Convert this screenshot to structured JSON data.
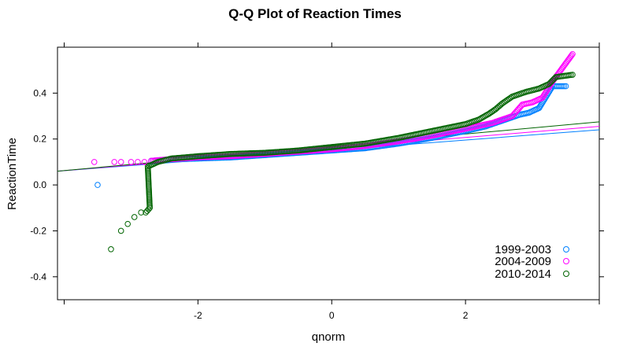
{
  "chart_data": {
    "type": "scatter",
    "title": "Q-Q Plot of Reaction Times",
    "xlabel": "qnorm",
    "ylabel": "ReactionTime",
    "xlim": [
      -4.1,
      4.0
    ],
    "ylim": [
      -0.5,
      0.6
    ],
    "x_ticks": [
      -2,
      0,
      2
    ],
    "y_ticks": [
      -0.4,
      -0.2,
      0.0,
      0.2,
      0.4
    ],
    "x_tick_labels": [
      "-2",
      "0",
      "2"
    ],
    "y_tick_labels": [
      "-0.4",
      "-0.2",
      "0.0",
      "0.2",
      "0.4"
    ],
    "legend_position": "bottom-right",
    "series": [
      {
        "name": "1999-2003",
        "color": "#0080ff",
        "qq_line": [
          [
            -4.1,
            0.06
          ],
          [
            4.0,
            0.24
          ]
        ],
        "points": [
          [
            -3.5,
            0.0
          ],
          [
            -2.7,
            0.105
          ],
          [
            -2.5,
            0.11
          ],
          [
            -2.0,
            0.115
          ],
          [
            -1.5,
            0.12
          ],
          [
            -1.0,
            0.13
          ],
          [
            -0.5,
            0.14
          ],
          [
            0.0,
            0.15
          ],
          [
            0.5,
            0.16
          ],
          [
            1.0,
            0.18
          ],
          [
            1.5,
            0.205
          ],
          [
            2.0,
            0.235
          ],
          [
            2.3,
            0.255
          ],
          [
            2.55,
            0.28
          ],
          [
            2.8,
            0.305
          ],
          [
            2.95,
            0.315
          ],
          [
            3.1,
            0.335
          ],
          [
            3.3,
            0.43
          ],
          [
            3.5,
            0.43
          ]
        ]
      },
      {
        "name": "2004-2009",
        "color": "#ff00ff",
        "qq_line": [
          [
            -4.1,
            0.06
          ],
          [
            4.0,
            0.255
          ]
        ],
        "points": [
          [
            -3.55,
            0.1
          ],
          [
            -3.25,
            0.1
          ],
          [
            -3.15,
            0.1
          ],
          [
            -3.0,
            0.1
          ],
          [
            -2.9,
            0.1
          ],
          [
            -2.8,
            0.1
          ],
          [
            -2.7,
            0.105
          ],
          [
            -2.5,
            0.11
          ],
          [
            -2.0,
            0.12
          ],
          [
            -1.5,
            0.125
          ],
          [
            -1.0,
            0.135
          ],
          [
            -0.5,
            0.145
          ],
          [
            0.0,
            0.155
          ],
          [
            0.5,
            0.17
          ],
          [
            1.0,
            0.19
          ],
          [
            1.5,
            0.215
          ],
          [
            2.0,
            0.245
          ],
          [
            2.4,
            0.27
          ],
          [
            2.7,
            0.3
          ],
          [
            2.85,
            0.35
          ],
          [
            3.0,
            0.36
          ],
          [
            3.15,
            0.38
          ],
          [
            3.3,
            0.45
          ],
          [
            3.6,
            0.57
          ]
        ]
      },
      {
        "name": "2010-2014",
        "color": "#006400",
        "qq_line": [
          [
            -4.1,
            0.06
          ],
          [
            4.0,
            0.275
          ]
        ],
        "points": [
          [
            -3.3,
            -0.28
          ],
          [
            -3.15,
            -0.2
          ],
          [
            -3.05,
            -0.17
          ],
          [
            -2.95,
            -0.14
          ],
          [
            -2.85,
            -0.12
          ],
          [
            -2.78,
            -0.12
          ],
          [
            -2.72,
            -0.1
          ],
          [
            -2.75,
            0.08
          ],
          [
            -2.6,
            0.1
          ],
          [
            -2.4,
            0.115
          ],
          [
            -2.0,
            0.125
          ],
          [
            -1.5,
            0.135
          ],
          [
            -1.0,
            0.14
          ],
          [
            -0.5,
            0.15
          ],
          [
            0.0,
            0.165
          ],
          [
            0.5,
            0.18
          ],
          [
            1.0,
            0.205
          ],
          [
            1.5,
            0.235
          ],
          [
            2.0,
            0.265
          ],
          [
            2.2,
            0.285
          ],
          [
            2.35,
            0.31
          ],
          [
            2.45,
            0.33
          ],
          [
            2.55,
            0.355
          ],
          [
            2.7,
            0.385
          ],
          [
            2.9,
            0.405
          ],
          [
            3.1,
            0.42
          ],
          [
            3.25,
            0.44
          ],
          [
            3.35,
            0.47
          ],
          [
            3.6,
            0.48
          ]
        ]
      }
    ]
  }
}
